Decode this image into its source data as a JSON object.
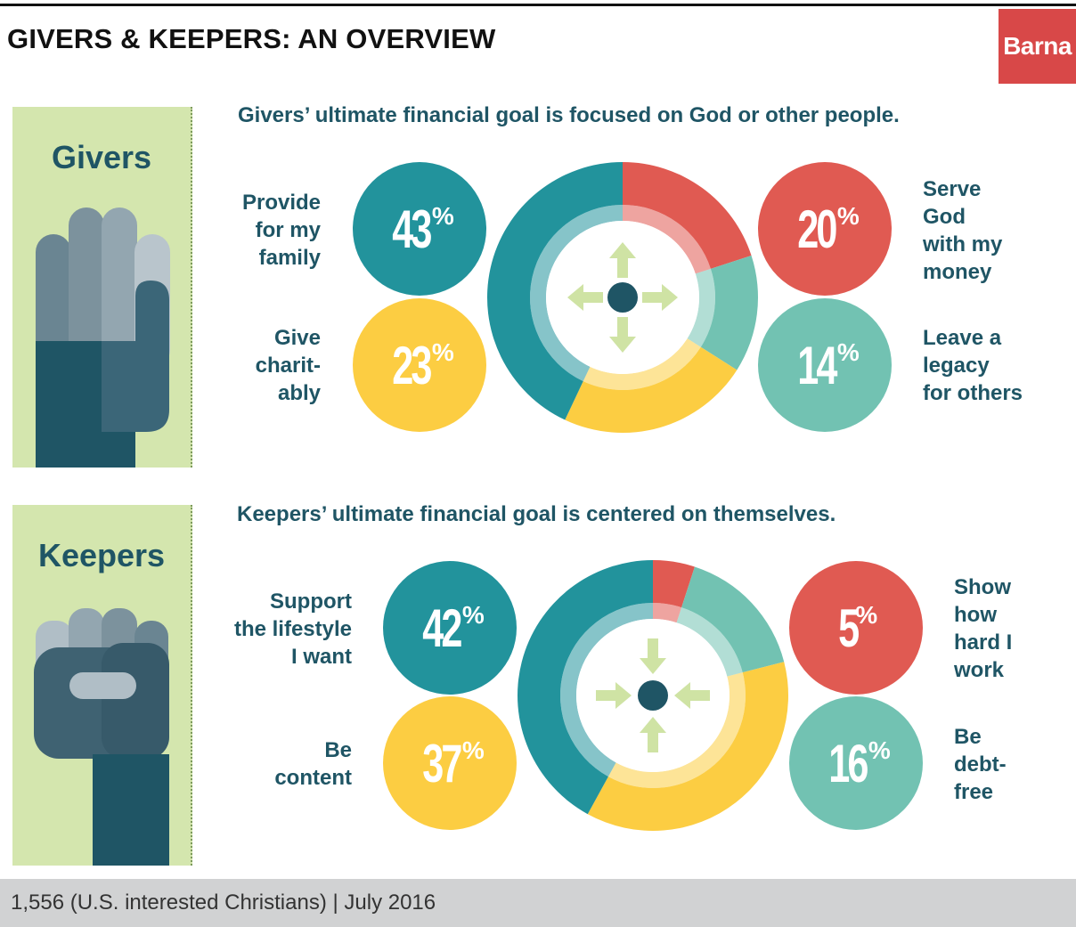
{
  "title": "GIVERS & KEEPERS: AN OVERVIEW",
  "logo": "Barna",
  "colors": {
    "teal_dark": "#22939c",
    "red": "#e05a52",
    "mint": "#72c2b2",
    "yellow": "#fccd42",
    "navy": "#1f5565",
    "green_panel": "#d4e6ae",
    "arrow_green": "#cfe3a4"
  },
  "givers": {
    "panel_label": "Givers",
    "headline": "Givers’ ultimate financial goal is focused on God or other people.",
    "icon": "open-hand-icon",
    "items": [
      {
        "label": "Provide for my family",
        "value": "43",
        "color": "#22939c"
      },
      {
        "label": "Give charit-ably",
        "value": "23",
        "color": "#fccd42"
      },
      {
        "label": "Serve God with my money",
        "value": "20",
        "color": "#e05a52"
      },
      {
        "label": "Leave a legacy for others",
        "value": "14",
        "color": "#72c2b2"
      }
    ]
  },
  "keepers": {
    "panel_label": "Keepers",
    "headline": "Keepers’ ultimate financial goal is centered on themselves.",
    "icon": "fist-icon",
    "items": [
      {
        "label": "Support the lifestyle I want",
        "value": "42",
        "color": "#22939c"
      },
      {
        "label": "Be content",
        "value": "37",
        "color": "#fccd42"
      },
      {
        "label": "Show how hard I work",
        "value": "5",
        "color": "#e05a52"
      },
      {
        "label": "Be debt-free",
        "value": "16",
        "color": "#72c2b2"
      }
    ]
  },
  "label_lines": {
    "g0": [
      "Provide",
      "for my",
      "family"
    ],
    "g1": [
      "Give",
      "charit-",
      "ably"
    ],
    "g2": [
      "Serve",
      "God",
      "with my",
      "money"
    ],
    "g3": [
      "Leave a",
      "legacy",
      "for others"
    ],
    "k0": [
      "Support",
      "the lifestyle",
      "I want"
    ],
    "k1": [
      "Be",
      "content"
    ],
    "k2": [
      "Show",
      "how",
      "hard I",
      "work"
    ],
    "k3": [
      "Be",
      "debt-",
      "free"
    ]
  },
  "pct_sign": "%",
  "chart_data": [
    {
      "type": "pie",
      "title": "Givers’ ultimate financial goal is focused on God or other people.",
      "categories": [
        "Serve God with my money",
        "Leave a legacy for others",
        "Give charitably",
        "Provide for my family"
      ],
      "values": [
        20,
        14,
        23,
        43
      ],
      "unit": "%",
      "colors": [
        "#e05a52",
        "#72c2b2",
        "#fccd42",
        "#22939c"
      ]
    },
    {
      "type": "pie",
      "title": "Keepers’ ultimate financial goal is centered on themselves.",
      "categories": [
        "Show how hard I work",
        "Be debt-free",
        "Be content",
        "Support the lifestyle I want"
      ],
      "values": [
        5,
        16,
        37,
        42
      ],
      "unit": "%",
      "colors": [
        "#e05a52",
        "#72c2b2",
        "#fccd42",
        "#22939c"
      ]
    }
  ],
  "footer": "1,556 (U.S. interested Christians) | July 2016"
}
